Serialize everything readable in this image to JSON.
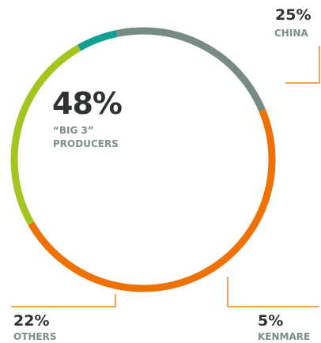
{
  "chart_data": {
    "type": "pie",
    "style": "donut",
    "headline": {
      "value": "48%",
      "label_line1": "“BIG 3”",
      "label_line2": "PRODUCERS"
    },
    "slices": [
      {
        "label": "“BIG 3” PRODUCERS",
        "value": 48,
        "color": "#ee7203"
      },
      {
        "label": "CHINA",
        "value": 25,
        "color": "#a4c520"
      },
      {
        "label": "KENMARE",
        "value": 5,
        "color": "#159f93"
      },
      {
        "label": "OTHERS",
        "value": 22,
        "color": "#778b82"
      }
    ],
    "labels": {
      "china": {
        "pct": "25%",
        "name": "CHINA"
      },
      "kenmare": {
        "pct": "5%",
        "name": "KENMARE"
      },
      "others": {
        "pct": "22%",
        "name": "OTHERS"
      }
    },
    "leader_color": "#ee7203"
  }
}
